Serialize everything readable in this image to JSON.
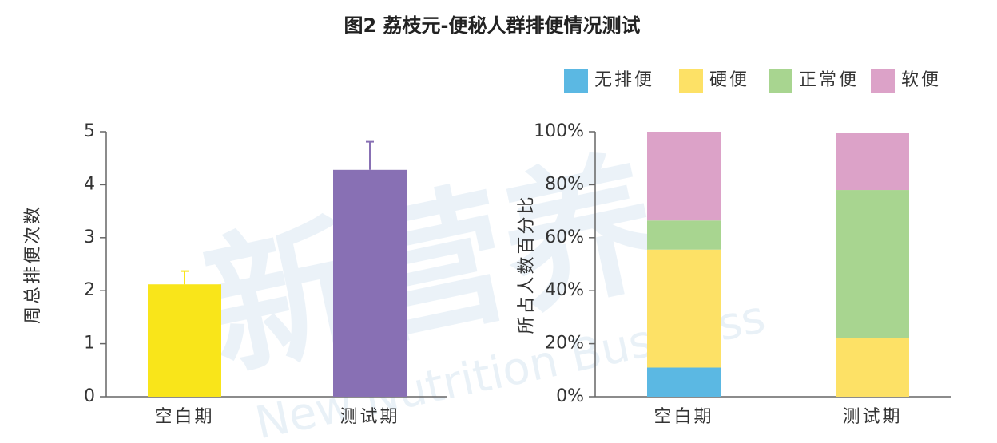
{
  "title": "图2 荔枝元-便秘人群排便情况测试",
  "watermark": [
    "新营养",
    "New Nutrition Business"
  ],
  "chart_data": [
    {
      "type": "bar",
      "ylabel": "周总排便次数",
      "categories": [
        "空白期",
        "测试期"
      ],
      "values": [
        2.12,
        4.28
      ],
      "errors": [
        0.25,
        0.53
      ],
      "colors": [
        "#f9e51a",
        "#8870b4"
      ],
      "ylim": [
        0,
        5
      ],
      "yticks": [
        0,
        1,
        2,
        3,
        4,
        5
      ]
    },
    {
      "type": "stacked_bar",
      "ylabel": "所占人数百分比",
      "categories": [
        "空白期",
        "测试期"
      ],
      "series": [
        {
          "name": "无排便",
          "color": "#5bb8e3",
          "values": [
            11,
            0
          ]
        },
        {
          "name": "硬便",
          "color": "#fde166",
          "values": [
            44.5,
            22
          ]
        },
        {
          "name": "正常便",
          "color": "#a8d590",
          "values": [
            11,
            56
          ]
        },
        {
          "name": "软便",
          "color": "#dca2c8",
          "values": [
            33.5,
            21.5
          ]
        }
      ],
      "ylim": [
        0,
        100
      ],
      "yticks": [
        {
          "value": 0,
          "label": "0%"
        },
        {
          "value": 20,
          "label": "20%"
        },
        {
          "value": 40,
          "label": "40%"
        },
        {
          "value": 60,
          "label": "60%"
        },
        {
          "value": 80,
          "label": "80%"
        },
        {
          "value": 100,
          "label": "100%"
        }
      ]
    }
  ]
}
